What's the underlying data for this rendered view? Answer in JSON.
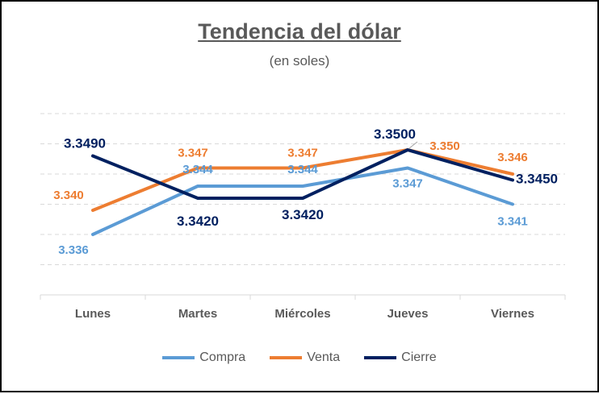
{
  "chart_data": {
    "type": "line",
    "title": "Tendencia del dólar",
    "subtitle": "(en soles)",
    "categories": [
      "Lunes",
      "Martes",
      "Miércoles",
      "Jueves",
      "Viernes"
    ],
    "series": [
      {
        "name": "Compra",
        "color": "#5B9BD5",
        "values": [
          3.336,
          3.344,
          3.344,
          3.347,
          3.341
        ],
        "labels": [
          "3.336",
          "3.344",
          "3.344",
          "3.347",
          "3.341"
        ]
      },
      {
        "name": "Venta",
        "color": "#ED7D31",
        "values": [
          3.34,
          3.347,
          3.347,
          3.35,
          3.346
        ],
        "labels": [
          "3.340",
          "3.347",
          "3.347",
          "3.350",
          "3.346"
        ]
      },
      {
        "name": "Cierre",
        "color": "#002060",
        "values": [
          3.349,
          3.342,
          3.342,
          3.35,
          3.345
        ],
        "labels": [
          "3.3490",
          "3.3420",
          "3.3420",
          "3.3500",
          "3.3450"
        ]
      }
    ],
    "ylim": [
      3.326,
      3.356
    ],
    "grid": true,
    "legend": "bottom"
  }
}
